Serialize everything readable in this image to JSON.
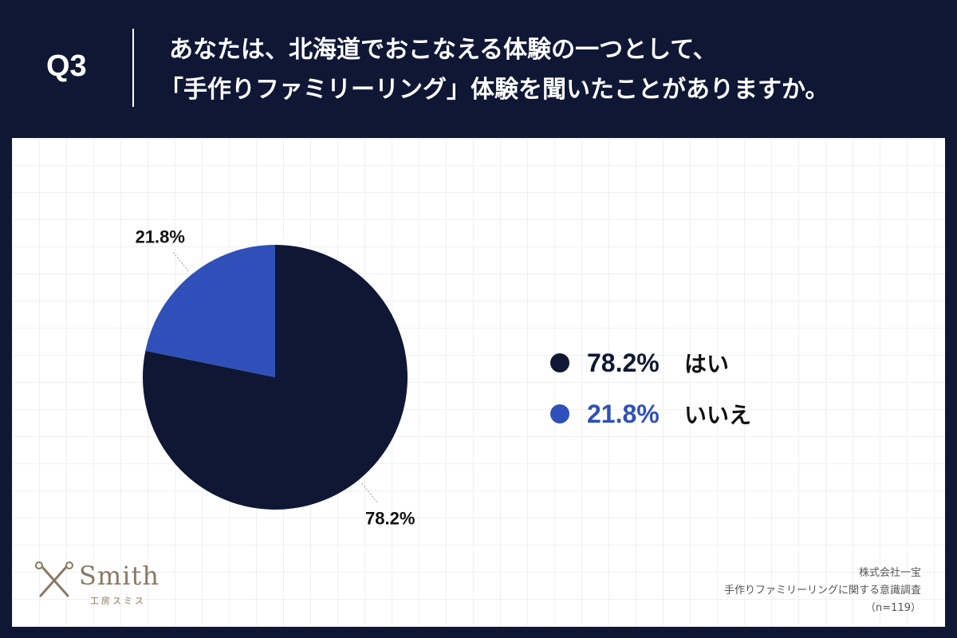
{
  "header": {
    "q_label": "Q3",
    "question_line1": "あなたは、北海道でおこなえる体験の一つとして、",
    "question_line2": "「手作りファミリーリング」体験を聞いたことがありますか。"
  },
  "chart_data": {
    "type": "pie",
    "categories": [
      "はい",
      "いいえ"
    ],
    "values": [
      78.2,
      21.8
    ],
    "value_labels": [
      "78.2%",
      "21.8%"
    ],
    "colors": [
      "#0f1735",
      "#2f50b8"
    ],
    "legend_position": "right"
  },
  "legend": [
    {
      "pct": "78.2%",
      "name": "はい",
      "color": "#0f1735"
    },
    {
      "pct": "21.8%",
      "name": "いいえ",
      "color": "#2f50b8"
    }
  ],
  "logo": {
    "name": "Smith",
    "sub": "工房スミス"
  },
  "source": {
    "company": "株式会社一宝",
    "survey": "手作りファミリーリングに関する意識調査",
    "n": "（n=119）"
  }
}
